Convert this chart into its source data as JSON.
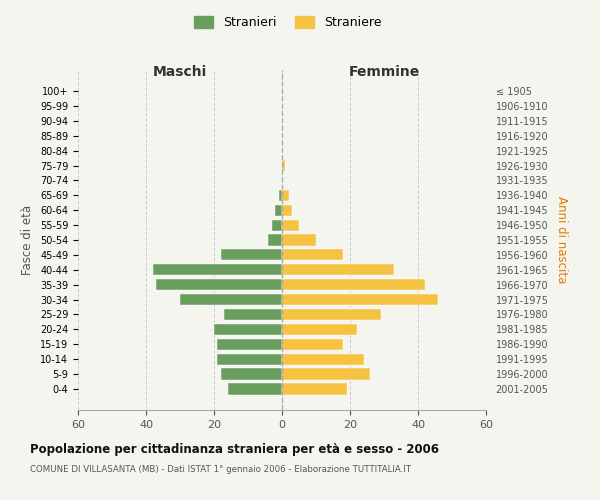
{
  "age_groups": [
    "100+",
    "95-99",
    "90-94",
    "85-89",
    "80-84",
    "75-79",
    "70-74",
    "65-69",
    "60-64",
    "55-59",
    "50-54",
    "45-49",
    "40-44",
    "35-39",
    "30-34",
    "25-29",
    "20-24",
    "15-19",
    "10-14",
    "5-9",
    "0-4"
  ],
  "birth_years": [
    "≤ 1905",
    "1906-1910",
    "1911-1915",
    "1916-1920",
    "1921-1925",
    "1926-1930",
    "1931-1935",
    "1936-1940",
    "1941-1945",
    "1946-1950",
    "1951-1955",
    "1956-1960",
    "1961-1965",
    "1966-1970",
    "1971-1975",
    "1976-1980",
    "1981-1985",
    "1986-1990",
    "1991-1995",
    "1996-2000",
    "2001-2005"
  ],
  "maschi": [
    0,
    0,
    0,
    0,
    0,
    0,
    0,
    1,
    2,
    3,
    4,
    18,
    38,
    37,
    30,
    17,
    20,
    19,
    19,
    18,
    16
  ],
  "femmine": [
    0,
    0,
    0,
    0,
    0,
    1,
    0,
    2,
    3,
    5,
    10,
    18,
    33,
    42,
    46,
    29,
    22,
    18,
    24,
    26,
    19
  ],
  "color_maschi": "#6a9e5e",
  "color_femmine": "#f5c242",
  "xlabel_left": "Maschi",
  "xlabel_right": "Femmine",
  "ylabel_left": "Fasce di età",
  "ylabel_right": "Anni di nascita",
  "legend_maschi": "Stranieri",
  "legend_femmine": "Straniere",
  "xlim": 60,
  "title": "Popolazione per cittadinanza straniera per età e sesso - 2006",
  "subtitle": "COMUNE DI VILLASANTA (MB) - Dati ISTAT 1° gennaio 2006 - Elaborazione TUTTITALIA.IT",
  "background_color": "#f5f5f0",
  "grid_color": "#cccccc"
}
